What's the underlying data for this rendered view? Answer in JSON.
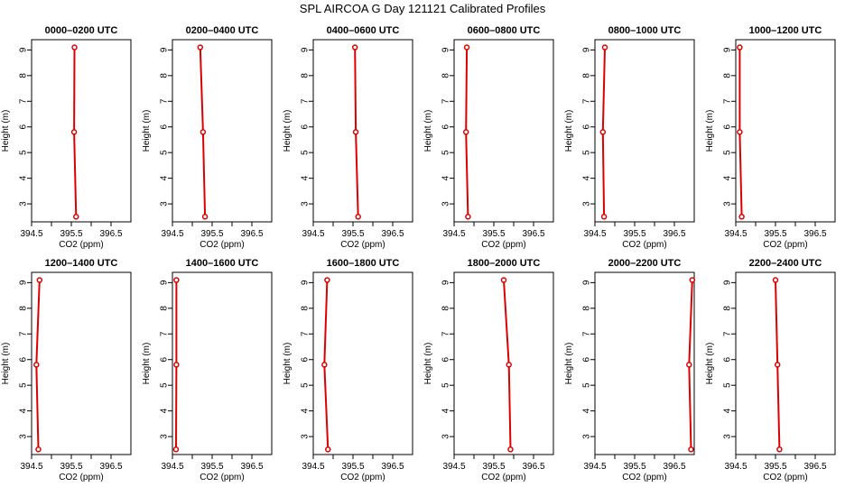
{
  "figure_title": "SPL AIRCOA G  Day 121121  Calibrated Profiles",
  "colors": {
    "series": "#dd0000",
    "axes": "#000000"
  },
  "chart_data": [
    {
      "type": "line",
      "title": "0000–0200 UTC",
      "xlabel": "CO2 (ppm)",
      "ylabel": "Height (m)",
      "xlim": [
        394.5,
        397.0
      ],
      "ylim": [
        2.3,
        9.4
      ],
      "xticks": [
        "394.5",
        "395.5",
        "396.5"
      ],
      "yticks": [
        "3",
        "4",
        "5",
        "6",
        "7",
        "8",
        "9"
      ],
      "heights": [
        9.1,
        5.8,
        2.5
      ],
      "co2": [
        395.58,
        395.57,
        395.62
      ],
      "legend": "none",
      "grid": false
    },
    {
      "type": "line",
      "title": "0200–0400 UTC",
      "xlabel": "CO2 (ppm)",
      "ylabel": "Height (m)",
      "xlim": [
        394.5,
        397.0
      ],
      "ylim": [
        2.3,
        9.4
      ],
      "xticks": [
        "394.5",
        "395.5",
        "396.5"
      ],
      "yticks": [
        "3",
        "4",
        "5",
        "6",
        "7",
        "8",
        "9"
      ],
      "heights": [
        9.1,
        5.8,
        2.5
      ],
      "co2": [
        395.2,
        395.27,
        395.32
      ],
      "legend": "none",
      "grid": false
    },
    {
      "type": "line",
      "title": "0400–0600 UTC",
      "xlabel": "CO2 (ppm)",
      "ylabel": "Height (m)",
      "xlim": [
        394.5,
        397.0
      ],
      "ylim": [
        2.3,
        9.4
      ],
      "xticks": [
        "394.5",
        "395.5",
        "396.5"
      ],
      "yticks": [
        "3",
        "4",
        "5",
        "6",
        "7",
        "8",
        "9"
      ],
      "heights": [
        9.1,
        5.8,
        2.5
      ],
      "co2": [
        395.55,
        395.57,
        395.63
      ],
      "legend": "none",
      "grid": false
    },
    {
      "type": "line",
      "title": "0600–0800 UTC",
      "xlabel": "CO2 (ppm)",
      "ylabel": "Height (m)",
      "xlim": [
        394.5,
        397.0
      ],
      "ylim": [
        2.3,
        9.4
      ],
      "xticks": [
        "394.5",
        "395.5",
        "396.5"
      ],
      "yticks": [
        "3",
        "4",
        "5",
        "6",
        "7",
        "8",
        "9"
      ],
      "heights": [
        9.1,
        5.8,
        2.5
      ],
      "co2": [
        394.82,
        394.8,
        394.85
      ],
      "legend": "none",
      "grid": false
    },
    {
      "type": "line",
      "title": "0800–1000 UTC",
      "xlabel": "CO2 (ppm)",
      "ylabel": "Height (m)",
      "xlim": [
        394.5,
        397.0
      ],
      "ylim": [
        2.3,
        9.4
      ],
      "xticks": [
        "394.5",
        "395.5",
        "396.5"
      ],
      "yticks": [
        "3",
        "4",
        "5",
        "6",
        "7",
        "8",
        "9"
      ],
      "heights": [
        9.1,
        5.8,
        2.5
      ],
      "co2": [
        394.75,
        394.7,
        394.73
      ],
      "legend": "none",
      "grid": false
    },
    {
      "type": "line",
      "title": "1000–1200 UTC",
      "xlabel": "CO2 (ppm)",
      "ylabel": "Height (m)",
      "xlim": [
        394.5,
        397.0
      ],
      "ylim": [
        2.3,
        9.4
      ],
      "xticks": [
        "394.5",
        "395.5",
        "396.5"
      ],
      "yticks": [
        "3",
        "4",
        "5",
        "6",
        "7",
        "8",
        "9"
      ],
      "heights": [
        9.1,
        5.8,
        2.5
      ],
      "co2": [
        394.6,
        394.6,
        394.65
      ],
      "legend": "none",
      "grid": false
    },
    {
      "type": "line",
      "title": "1200–1400 UTC",
      "xlabel": "CO2 (ppm)",
      "ylabel": "Height (m)",
      "xlim": [
        394.5,
        397.0
      ],
      "ylim": [
        2.3,
        9.4
      ],
      "xticks": [
        "394.5",
        "395.5",
        "396.5"
      ],
      "yticks": [
        "3",
        "4",
        "5",
        "6",
        "7",
        "8",
        "9"
      ],
      "heights": [
        9.1,
        5.8,
        2.5
      ],
      "co2": [
        394.7,
        394.62,
        394.67
      ],
      "legend": "none",
      "grid": false
    },
    {
      "type": "line",
      "title": "1400–1600 UTC",
      "xlabel": "CO2 (ppm)",
      "ylabel": "Height (m)",
      "xlim": [
        394.5,
        397.0
      ],
      "ylim": [
        2.3,
        9.4
      ],
      "xticks": [
        "394.5",
        "395.5",
        "396.5"
      ],
      "yticks": [
        "3",
        "4",
        "5",
        "6",
        "7",
        "8",
        "9"
      ],
      "heights": [
        9.1,
        5.8,
        2.5
      ],
      "co2": [
        394.6,
        394.6,
        394.59
      ],
      "legend": "none",
      "grid": false
    },
    {
      "type": "line",
      "title": "1600–1800 UTC",
      "xlabel": "CO2 (ppm)",
      "ylabel": "Height (m)",
      "xlim": [
        394.5,
        397.0
      ],
      "ylim": [
        2.3,
        9.4
      ],
      "xticks": [
        "394.5",
        "395.5",
        "396.5"
      ],
      "yticks": [
        "3",
        "4",
        "5",
        "6",
        "7",
        "8",
        "9"
      ],
      "heights": [
        9.1,
        5.8,
        2.5
      ],
      "co2": [
        394.85,
        394.78,
        394.87
      ],
      "legend": "none",
      "grid": false
    },
    {
      "type": "line",
      "title": "1800–2000 UTC",
      "xlabel": "CO2 (ppm)",
      "ylabel": "Height (m)",
      "xlim": [
        394.5,
        397.0
      ],
      "ylim": [
        2.3,
        9.4
      ],
      "xticks": [
        "394.5",
        "395.5",
        "396.5"
      ],
      "yticks": [
        "3",
        "4",
        "5",
        "6",
        "7",
        "8",
        "9"
      ],
      "heights": [
        9.1,
        5.8,
        2.5
      ],
      "co2": [
        395.75,
        395.88,
        395.92
      ],
      "legend": "none",
      "grid": false
    },
    {
      "type": "line",
      "title": "2000–2200 UTC",
      "xlabel": "CO2 (ppm)",
      "ylabel": "Height (m)",
      "xlim": [
        394.5,
        397.0
      ],
      "ylim": [
        2.3,
        9.4
      ],
      "xticks": [
        "394.5",
        "395.5",
        "396.5"
      ],
      "yticks": [
        "3",
        "4",
        "5",
        "6",
        "7",
        "8",
        "9"
      ],
      "heights": [
        9.1,
        5.8,
        2.5
      ],
      "co2": [
        396.95,
        396.87,
        396.92
      ],
      "legend": "none",
      "grid": false
    },
    {
      "type": "line",
      "title": "2200–2400 UTC",
      "xlabel": "CO2 (ppm)",
      "ylabel": "Height (m)",
      "xlim": [
        394.5,
        397.0
      ],
      "ylim": [
        2.3,
        9.4
      ],
      "xticks": [
        "394.5",
        "395.5",
        "396.5"
      ],
      "yticks": [
        "3",
        "4",
        "5",
        "6",
        "7",
        "8",
        "9"
      ],
      "heights": [
        9.1,
        5.8,
        2.5
      ],
      "co2": [
        395.5,
        395.55,
        395.6
      ],
      "legend": "none",
      "grid": false
    }
  ]
}
